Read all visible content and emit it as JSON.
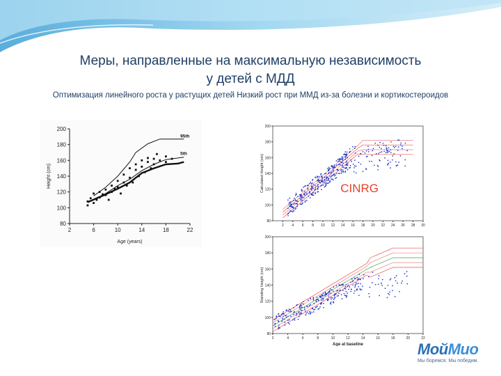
{
  "slide": {
    "title_line1": "Меры, направленные на максимальную независимость",
    "title_line2": "у детей с МДД",
    "subtitle": "Оптимизация линейного роста у растущих детей Низкий рост при ММД из-за болезни и кортикостероидов",
    "logo_part1": "Мой",
    "logo_part2": "Мио",
    "logo_tagline": "Мы боремся. Мы победим.",
    "colors": {
      "title": "#1f3f66",
      "wave": "#7cc0e4",
      "points": "#1b35c9",
      "logo": "#2a6fb6"
    }
  },
  "chart_data": [
    {
      "type": "scatter",
      "xlabel": "Age (years)",
      "ylabel": "Height (cm)",
      "xlim": [
        2,
        22
      ],
      "ylim": [
        80,
        200
      ],
      "xticks": [
        2,
        6,
        10,
        14,
        18,
        22
      ],
      "yticks": [
        80,
        100,
        120,
        140,
        160,
        180,
        200
      ],
      "curve_labels": [
        "95th",
        "5th"
      ],
      "series": [
        {
          "line": [
            [
              6,
              115
            ],
            [
              8,
              126
            ],
            [
              10,
              140
            ],
            [
              12,
              158
            ],
            [
              13,
              170
            ],
            [
              15,
              181
            ],
            [
              17,
              187
            ],
            [
              20,
              187
            ],
            [
              21,
              187
            ]
          ]
        },
        {
          "line": [
            [
              6,
              110
            ],
            [
              8,
              118
            ],
            [
              10,
              128
            ],
            [
              12,
              136
            ],
            [
              14,
              147
            ],
            [
              16,
              155
            ],
            [
              18,
              161
            ],
            [
              21,
              164
            ]
          ]
        },
        {
          "line": [
            [
              5,
              107
            ],
            [
              8,
              117
            ],
            [
              10,
              124
            ],
            [
              12,
              132
            ],
            [
              14,
              144
            ],
            [
              16,
              150
            ],
            [
              18,
              155
            ],
            [
              20,
              156
            ],
            [
              21,
              158
            ]
          ]
        },
        {
          "points": [
            [
              5,
              103
            ],
            [
              5,
              108
            ],
            [
              5.5,
              112
            ],
            [
              6,
              118
            ],
            [
              6,
              106
            ],
            [
              6.5,
              110
            ],
            [
              7,
              120
            ],
            [
              7,
              113
            ],
            [
              7.5,
              117
            ],
            [
              8,
              123
            ],
            [
              8,
              116
            ],
            [
              8.5,
              110
            ],
            [
              9,
              128
            ],
            [
              9,
              120
            ],
            [
              9.5,
              124
            ],
            [
              10,
              134
            ],
            [
              10,
              126
            ],
            [
              10.5,
              118
            ],
            [
              11,
              132
            ],
            [
              11,
              142
            ],
            [
              11.5,
              128
            ],
            [
              12,
              150
            ],
            [
              12,
              138
            ],
            [
              12.5,
              132
            ],
            [
              13,
              148
            ],
            [
              13,
              155
            ],
            [
              13.5,
              140
            ],
            [
              14,
              152
            ],
            [
              14,
              160
            ],
            [
              14.5,
              145
            ],
            [
              15,
              158
            ],
            [
              15,
              163
            ],
            [
              15.5,
              150
            ],
            [
              16,
              162
            ],
            [
              16,
              155
            ],
            [
              16.5,
              168
            ],
            [
              17,
              160
            ],
            [
              18,
              165
            ],
            [
              18,
              158
            ],
            [
              19,
              162
            ]
          ]
        }
      ]
    },
    {
      "type": "scatter",
      "title": "CINRG",
      "xlabel": "",
      "ylabel": "Calculated Height (cm)",
      "xlim": [
        0,
        30
      ],
      "ylim": [
        80,
        200
      ],
      "xticks": [
        2,
        4,
        6,
        8,
        10,
        12,
        14,
        16,
        18,
        20,
        22,
        24,
        26,
        28,
        30
      ],
      "yticks": [
        80,
        100,
        120,
        140,
        160,
        180,
        200
      ]
    },
    {
      "type": "scatter",
      "xlabel": "Age at baseline",
      "ylabel": "Standing Height (cm)",
      "xlim": [
        2,
        22
      ],
      "ylim": [
        80,
        200
      ],
      "xticks": [
        2,
        4,
        6,
        8,
        10,
        12,
        14,
        16,
        18,
        20,
        22
      ],
      "yticks": [
        80,
        100,
        120,
        140,
        160,
        180,
        200
      ]
    }
  ]
}
